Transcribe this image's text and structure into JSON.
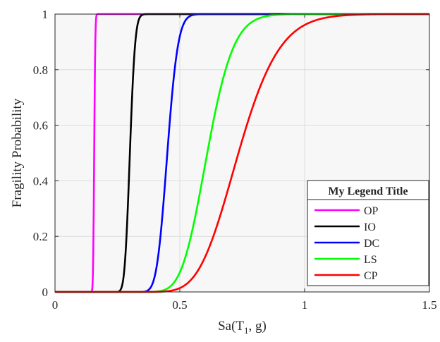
{
  "chart_data": {
    "type": "line",
    "title": "",
    "xlabel": "Sa(T₁, g)",
    "xlabel_parts": {
      "main": "Sa(T",
      "sub": "1",
      "tail": ", g)"
    },
    "ylabel": "Fragility Probability",
    "xlim": [
      0,
      1.5
    ],
    "ylim": [
      0,
      1
    ],
    "x_ticks": [
      "0",
      "0.5",
      "1",
      "1.5"
    ],
    "y_ticks": [
      "0",
      "0.2",
      "0.4",
      "0.6",
      "0.8",
      "1"
    ],
    "grid": true,
    "legend_title": "My Legend Title",
    "legend_position": "bottom-right",
    "series": [
      {
        "name": "OP",
        "color": "#ff00ff",
        "median": 0.157,
        "beta": 0.022
      },
      {
        "name": "IO",
        "color": "#000000",
        "median": 0.3,
        "beta": 0.055
      },
      {
        "name": "DC",
        "color": "#0000ff",
        "median": 0.45,
        "beta": 0.075
      },
      {
        "name": "LS",
        "color": "#00ff00",
        "median": 0.61,
        "beta": 0.135
      },
      {
        "name": "CP",
        "color": "#ff0000",
        "median": 0.735,
        "beta": 0.175
      }
    ]
  }
}
